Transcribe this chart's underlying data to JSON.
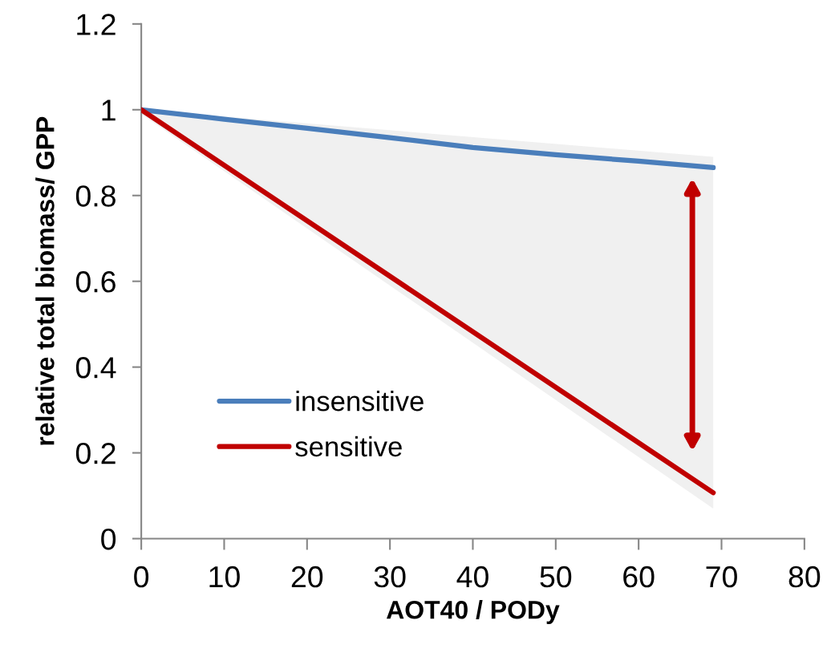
{
  "chart_data": {
    "type": "line",
    "xlabel": "AOT40 / PODy",
    "ylabel": "relative total biomass/ GPP",
    "series": [
      {
        "name": "insensitive",
        "color": "#4a7ebb",
        "x": [
          0,
          10,
          20,
          30,
          40,
          50,
          60,
          69
        ],
        "values": [
          1,
          0.978,
          0.957,
          0.935,
          0.912,
          0.895,
          0.88,
          0.865
        ]
      },
      {
        "name": "sensitive",
        "color": "#c00000",
        "x": [
          0,
          69
        ],
        "values": [
          1,
          0.107
        ],
        "lower": [
          0.99,
          0.07
        ],
        "upper": [
          1,
          0.89
        ]
      }
    ],
    "xlim": [
      0,
      80
    ],
    "xticks": [
      0,
      10,
      20,
      30,
      40,
      50,
      60,
      70,
      80
    ],
    "ylim": [
      0,
      1.2
    ],
    "yticks": [
      0,
      0.2,
      0.4,
      0.6,
      0.8,
      1,
      1.2
    ],
    "grid": false,
    "legend": "bottom left",
    "marker": "none",
    "line_style": "solid"
  }
}
